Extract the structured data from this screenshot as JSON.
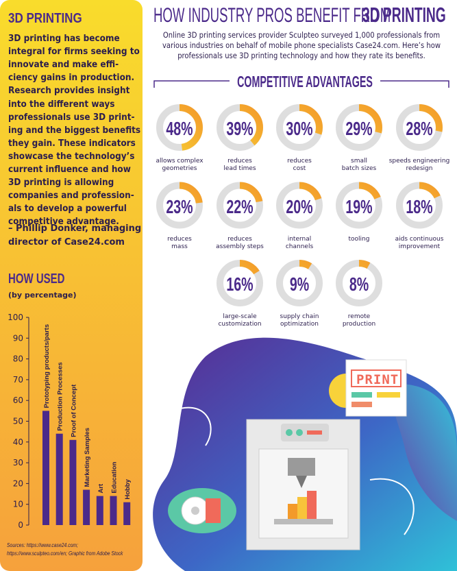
{
  "sidebar": {
    "heading": "3D PRINTING",
    "lines": [
      "3D printing has become",
      "integral for firms seeking to",
      "innovate and make effi-",
      "ciency gains in production.",
      "Research provides insight",
      "into the different ways",
      "professionals use 3D print-",
      "ing and the biggest benefits",
      "they gain. These indicators",
      "showcase the technology’s",
      "current influence and how",
      "3D printing is allowing",
      "companies and profession-",
      "als to develop a powerful",
      "competitive advantage."
    ],
    "quote": [
      "– Phillip Donker, managing",
      "director of Case24.com"
    ],
    "sources": [
      "Sources: https://www.case24.com;",
      "https://www.sculpteo.com/en; Graphic from Adobe Stock"
    ]
  },
  "header": {
    "title_light": "HOW INDUSTRY PROS BENEFIT FROM",
    "title_bold": "3D PRINTING",
    "subtitle": [
      "Online 3D printing services provider Sculpteo surveyed 1,000 professionals from",
      "various industries on behalf of mobile phone specialists Case24.com. Here’s how",
      "professionals use 3D printing technology and how they rate its benefits."
    ]
  },
  "illustration": {
    "sign": "PRINT"
  },
  "chart_data": [
    {
      "type": "donut",
      "title": "COMPETITIVE ADVANTAGES",
      "categories": [
        "allows complex\ngeometries",
        "reduces\nlead times",
        "reduces\ncost",
        "small\nbatch sizes",
        "speeds engineering\nredesign",
        "reduces\nmass",
        "reduces\nassembly steps",
        "internal\nchannels",
        "tooling",
        "aids continuous\nimprovement",
        "large-scale\ncustomization",
        "supply chain\noptimization",
        "remote\nproduction"
      ],
      "values": [
        48,
        39,
        30,
        29,
        28,
        23,
        22,
        20,
        19,
        18,
        16,
        9,
        8
      ],
      "value_labels": [
        "48%",
        "39%",
        "30%",
        "29%",
        "28%",
        "23%",
        "22%",
        "20%",
        "19%",
        "18%",
        "16%",
        "9%",
        "8%"
      ],
      "color": "#f39a2a",
      "track_color": "#dedede"
    },
    {
      "type": "bar",
      "title": "HOW USED",
      "subtitle": "(by percentage)",
      "categories": [
        "Prototyping products/parts",
        "Production Processes",
        "Proof of Concept",
        "Marketing Samples",
        "Art",
        "Education",
        "Hobby"
      ],
      "values": [
        55,
        44,
        41,
        17,
        14,
        14,
        11
      ],
      "color": "#4b2a8a",
      "ylim": [
        0,
        100
      ],
      "yticks": [
        0,
        10,
        20,
        30,
        40,
        50,
        60,
        70,
        80,
        90,
        100
      ]
    }
  ]
}
